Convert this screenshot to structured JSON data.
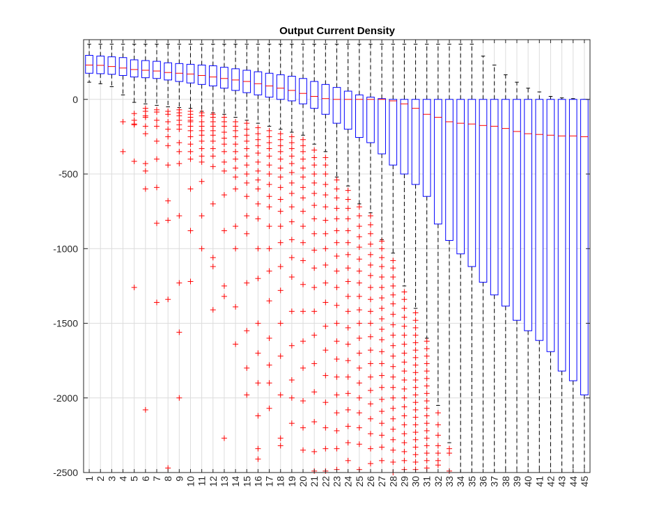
{
  "chart_data": {
    "type": "box",
    "title": "Output Current Density",
    "xlabel": "",
    "ylabel": "",
    "categories": [
      "1",
      "2",
      "3",
      "4",
      "5",
      "6",
      "7",
      "8",
      "9",
      "10",
      "11",
      "12",
      "13",
      "14",
      "15",
      "16",
      "17",
      "18",
      "19",
      "20",
      "21",
      "22",
      "23",
      "24",
      "25",
      "26",
      "27",
      "28",
      "29",
      "30",
      "31",
      "32",
      "33",
      "34",
      "35",
      "36",
      "37",
      "38",
      "39",
      "40",
      "41",
      "42",
      "43",
      "44",
      "45"
    ],
    "ylim": [
      -2500,
      400
    ],
    "yticks": [
      0,
      -500,
      -1000,
      -1500,
      -2000,
      -2500
    ],
    "ytick_labels": [
      "0",
      "-500",
      "-1000",
      "-1500",
      "-2000",
      "-2500"
    ],
    "grid": true,
    "colors": {
      "box": "#0000ff",
      "median": "#ff0000",
      "whisker": "#000000",
      "outlier": "#ff0000",
      "grid": "#dcdcdc"
    },
    "boxes": [
      {
        "q1": 175,
        "median": 230,
        "q3": 295,
        "whisker_low": 115,
        "whisker_high": 370,
        "outliers": []
      },
      {
        "q1": 172,
        "median": 228,
        "q3": 290,
        "whisker_low": 105,
        "whisker_high": 370,
        "outliers": []
      },
      {
        "q1": 168,
        "median": 220,
        "q3": 285,
        "whisker_low": 85,
        "whisker_high": 370,
        "outliers": []
      },
      {
        "q1": 160,
        "median": 210,
        "q3": 280,
        "whisker_low": 30,
        "whisker_high": 370,
        "outliers": [
          -150,
          -350
        ]
      },
      {
        "q1": 150,
        "median": 200,
        "q3": 265,
        "whisker_low": -20,
        "whisker_high": 370,
        "outliers": [
          -95,
          -140,
          -165,
          -170,
          -415,
          -1260
        ]
      },
      {
        "q1": 145,
        "median": 195,
        "q3": 260,
        "whisker_low": -30,
        "whisker_high": 370,
        "outliers": [
          -60,
          -80,
          -110,
          -120,
          -180,
          -230,
          -430,
          -480,
          -600,
          -2080
        ]
      },
      {
        "q1": 140,
        "median": 190,
        "q3": 255,
        "whisker_low": -40,
        "whisker_high": 370,
        "outliers": [
          -70,
          -85,
          -140,
          -180,
          -280,
          -400,
          -590,
          -830,
          -1360
        ]
      },
      {
        "q1": 130,
        "median": 180,
        "q3": 245,
        "whisker_low": -50,
        "whisker_high": 370,
        "outliers": [
          -80,
          -100,
          -150,
          -200,
          -250,
          -310,
          -440,
          -680,
          -810,
          -1340,
          -2470
        ]
      },
      {
        "q1": 120,
        "median": 175,
        "q3": 240,
        "whisker_low": -55,
        "whisker_high": 370,
        "outliers": [
          -70,
          -90,
          -110,
          -140,
          -170,
          -200,
          -290,
          -350,
          -430,
          -780,
          -1230,
          -1560,
          -2000
        ]
      },
      {
        "q1": 110,
        "median": 170,
        "q3": 235,
        "whisker_low": -60,
        "whisker_high": 370,
        "outliers": [
          -80,
          -100,
          -120,
          -140,
          -150,
          -180,
          -210,
          -250,
          -300,
          -350,
          -400,
          -600,
          -880,
          -1220
        ]
      },
      {
        "q1": 100,
        "median": 160,
        "q3": 230,
        "whisker_low": -80,
        "whisker_high": 370,
        "outliers": [
          -90,
          -110,
          -150,
          -180,
          -210,
          -240,
          -280,
          -330,
          -380,
          -420,
          -550,
          -780,
          -1000
        ]
      },
      {
        "q1": 90,
        "median": 150,
        "q3": 225,
        "whisker_low": -90,
        "whisker_high": 370,
        "outliers": [
          -100,
          -120,
          -150,
          -180,
          -210,
          -240,
          -280,
          -330,
          -380,
          -450,
          -700,
          -1060,
          -1120,
          -1410
        ]
      },
      {
        "q1": 75,
        "median": 140,
        "q3": 215,
        "whisker_low": -100,
        "whisker_high": 370,
        "outliers": [
          -120,
          -150,
          -180,
          -220,
          -260,
          -300,
          -350,
          -420,
          -480,
          -640,
          -880,
          -1250,
          -1320,
          -2270
        ]
      },
      {
        "q1": 60,
        "median": 130,
        "q3": 205,
        "whisker_low": -120,
        "whisker_high": 370,
        "outliers": [
          -150,
          -180,
          -210,
          -250,
          -300,
          -350,
          -400,
          -460,
          -520,
          -600,
          -850,
          -1000,
          -1390,
          -1640
        ]
      },
      {
        "q1": 45,
        "median": 120,
        "q3": 195,
        "whisker_low": -140,
        "whisker_high": 370,
        "outliers": [
          -160,
          -200,
          -240,
          -280,
          -330,
          -380,
          -440,
          -500,
          -560,
          -650,
          -780,
          -900,
          -1230,
          -1550,
          -1800,
          -1980
        ]
      },
      {
        "q1": 30,
        "median": 105,
        "q3": 185,
        "whisker_low": -160,
        "whisker_high": 370,
        "outliers": [
          -190,
          -230,
          -270,
          -310,
          -360,
          -420,
          -480,
          -540,
          -600,
          -700,
          -800,
          -1000,
          -1200,
          -1500,
          -1700,
          -1900,
          -2120,
          -2340,
          -2410
        ]
      },
      {
        "q1": 15,
        "median": 90,
        "q3": 175,
        "whisker_low": -180,
        "whisker_high": 370,
        "outliers": [
          -210,
          -250,
          -290,
          -330,
          -380,
          -440,
          -500,
          -570,
          -650,
          -720,
          -850,
          -1000,
          -1150,
          -1350,
          -1600,
          -1780,
          -1900,
          -2070
        ]
      },
      {
        "q1": 0,
        "median": 75,
        "q3": 165,
        "whisker_low": -200,
        "whisker_high": 370,
        "outliers": [
          -230,
          -270,
          -310,
          -350,
          -400,
          -460,
          -520,
          -590,
          -670,
          -750,
          -850,
          -960,
          -1120,
          -1280,
          -1500,
          -1720,
          -1980,
          -2270,
          -2320
        ]
      },
      {
        "q1": -10,
        "median": 60,
        "q3": 155,
        "whisker_low": -220,
        "whisker_high": 370,
        "outliers": [
          -250,
          -290,
          -330,
          -380,
          -430,
          -490,
          -560,
          -630,
          -720,
          -820,
          -940,
          -1060,
          -1190,
          -1420,
          -1650,
          -1880,
          -2000,
          -2170
        ]
      },
      {
        "q1": -30,
        "median": 40,
        "q3": 140,
        "whisker_low": -240,
        "whisker_high": 370,
        "outliers": [
          -270,
          -310,
          -350,
          -400,
          -460,
          -520,
          -590,
          -660,
          -750,
          -850,
          -960,
          -1080,
          -1240,
          -1420,
          -1620,
          -1800,
          -2020,
          -2200,
          -2350
        ]
      },
      {
        "q1": -60,
        "median": 20,
        "q3": 120,
        "whisker_low": -300,
        "whisker_high": 370,
        "outliers": [
          -340,
          -390,
          -440,
          -500,
          -560,
          -630,
          -710,
          -800,
          -900,
          -1010,
          -1130,
          -1260,
          -1420,
          -1580,
          -1770,
          -1960,
          -2160,
          -2360,
          -2490
        ]
      },
      {
        "q1": -100,
        "median": 5,
        "q3": 100,
        "whisker_low": -350,
        "whisker_high": 370,
        "outliers": [
          -390,
          -440,
          -500,
          -570,
          -640,
          -720,
          -810,
          -900,
          -1000,
          -1110,
          -1230,
          -1360,
          -1520,
          -1680,
          -1850,
          -2030,
          -2200,
          -2340,
          -2490
        ]
      },
      {
        "q1": -160,
        "median": 0,
        "q3": 80,
        "whisker_low": -520,
        "whisker_high": 370,
        "outliers": [
          -540,
          -600,
          -660,
          -730,
          -800,
          -880,
          -960,
          -1050,
          -1150,
          -1260,
          -1380,
          -1500,
          -1620,
          -1740,
          -1860,
          -1980,
          -2100,
          -2220,
          -2340,
          -2480
        ]
      },
      {
        "q1": -200,
        "median": 0,
        "q3": 55,
        "whisker_low": -580,
        "whisker_high": 370,
        "outliers": [
          -610,
          -670,
          -730,
          -800,
          -880,
          -960,
          -1040,
          -1130,
          -1220,
          -1320,
          -1420,
          -1530,
          -1640,
          -1750,
          -1860,
          -1970,
          -2080,
          -2190,
          -2300,
          -2420
        ]
      },
      {
        "q1": -255,
        "median": 0,
        "q3": 30,
        "whisker_low": -700,
        "whisker_high": 370,
        "outliers": [
          -720,
          -780,
          -850,
          -920,
          -990,
          -1070,
          -1150,
          -1230,
          -1320,
          -1410,
          -1500,
          -1600,
          -1700,
          -1800,
          -1900,
          -2000,
          -2100,
          -2200,
          -2310,
          -2480
        ]
      },
      {
        "q1": -290,
        "median": 0,
        "q3": 15,
        "whisker_low": -760,
        "whisker_high": 370,
        "outliers": [
          -780,
          -840,
          -900,
          -970,
          -1040,
          -1110,
          -1180,
          -1260,
          -1340,
          -1420,
          -1500,
          -1590,
          -1680,
          -1770,
          -1860,
          -1950,
          -2040,
          -2140,
          -2240,
          -2340,
          -2440
        ]
      },
      {
        "q1": -365,
        "median": 0,
        "q3": 5,
        "whisker_low": -940,
        "whisker_high": 370,
        "outliers": [
          -950,
          -1000,
          -1060,
          -1120,
          -1190,
          -1260,
          -1330,
          -1400,
          -1470,
          -1540,
          -1610,
          -1690,
          -1770,
          -1850,
          -1930,
          -2010,
          -2090,
          -2170,
          -2250,
          -2330,
          -2420
        ]
      },
      {
        "q1": -440,
        "median": -10,
        "q3": 0,
        "whisker_low": -1030,
        "whisker_high": 370,
        "outliers": [
          -1080,
          -1130,
          -1190,
          -1250,
          -1310,
          -1370,
          -1440,
          -1510,
          -1580,
          -1650,
          -1720,
          -1790,
          -1860,
          -1930,
          -2000,
          -2070,
          -2140,
          -2210,
          -2280,
          -2350,
          -2430,
          -2500
        ]
      },
      {
        "q1": -500,
        "median": -30,
        "q3": 0,
        "whisker_low": -1250,
        "whisker_high": 370,
        "outliers": [
          -1290,
          -1340,
          -1400,
          -1460,
          -1520,
          -1580,
          -1640,
          -1700,
          -1760,
          -1820,
          -1880,
          -1940,
          -2000,
          -2060,
          -2120,
          -2180,
          -2240,
          -2300,
          -2360,
          -2420,
          -2480
        ]
      },
      {
        "q1": -570,
        "median": -60,
        "q3": 0,
        "whisker_low": -1400,
        "whisker_high": 370,
        "outliers": [
          -1430,
          -1480,
          -1530,
          -1580,
          -1630,
          -1680,
          -1730,
          -1780,
          -1830,
          -1880,
          -1930,
          -1980,
          -2030,
          -2080,
          -2130,
          -2180,
          -2230,
          -2280,
          -2330,
          -2380,
          -2430,
          -2480
        ]
      },
      {
        "q1": -650,
        "median": -100,
        "q3": 0,
        "whisker_low": -1600,
        "whisker_high": 370,
        "outliers": [
          -1620,
          -1670,
          -1720,
          -1770,
          -1820,
          -1870,
          -1920,
          -1970,
          -2020,
          -2070,
          -2120,
          -2170,
          -2220,
          -2270,
          -2320,
          -2370,
          -2420,
          -2470
        ]
      },
      {
        "q1": -835,
        "median": -120,
        "q3": 0,
        "whisker_low": -2050,
        "whisker_high": 370,
        "outliers": [
          -2100,
          -2180,
          -2250,
          -2320,
          -2370,
          -2420,
          -2450
        ]
      },
      {
        "q1": -945,
        "median": -150,
        "q3": 0,
        "whisker_low": -2300,
        "whisker_high": 370,
        "outliers": [
          -2340,
          -2370,
          -2490
        ]
      },
      {
        "q1": -1035,
        "median": -160,
        "q3": 0,
        "whisker_low": -2500,
        "whisker_high": 370,
        "outliers": []
      },
      {
        "q1": -1120,
        "median": -165,
        "q3": 0,
        "whisker_low": -2500,
        "whisker_high": 370,
        "outliers": []
      },
      {
        "q1": -1225,
        "median": -175,
        "q3": 0,
        "whisker_low": -2500,
        "whisker_high": 290,
        "outliers": []
      },
      {
        "q1": -1310,
        "median": -180,
        "q3": 0,
        "whisker_low": -2500,
        "whisker_high": 230,
        "outliers": []
      },
      {
        "q1": -1385,
        "median": -195,
        "q3": 0,
        "whisker_low": -2500,
        "whisker_high": 165,
        "outliers": []
      },
      {
        "q1": -1480,
        "median": -215,
        "q3": 0,
        "whisker_low": -2500,
        "whisker_high": 115,
        "outliers": []
      },
      {
        "q1": -1550,
        "median": -230,
        "q3": 0,
        "whisker_low": -2500,
        "whisker_high": 75,
        "outliers": []
      },
      {
        "q1": -1615,
        "median": -235,
        "q3": 0,
        "whisker_low": -2500,
        "whisker_high": 50,
        "outliers": []
      },
      {
        "q1": -1690,
        "median": -240,
        "q3": 0,
        "whisker_low": -2500,
        "whisker_high": 20,
        "outliers": []
      },
      {
        "q1": -1820,
        "median": -245,
        "q3": 0,
        "whisker_low": -2500,
        "whisker_high": 10,
        "outliers": []
      },
      {
        "q1": -1885,
        "median": -245,
        "q3": 0,
        "whisker_low": -2500,
        "whisker_high": 5,
        "outliers": []
      },
      {
        "q1": -1980,
        "median": -250,
        "q3": 0,
        "whisker_low": -2500,
        "whisker_high": 0,
        "outliers": []
      }
    ]
  }
}
